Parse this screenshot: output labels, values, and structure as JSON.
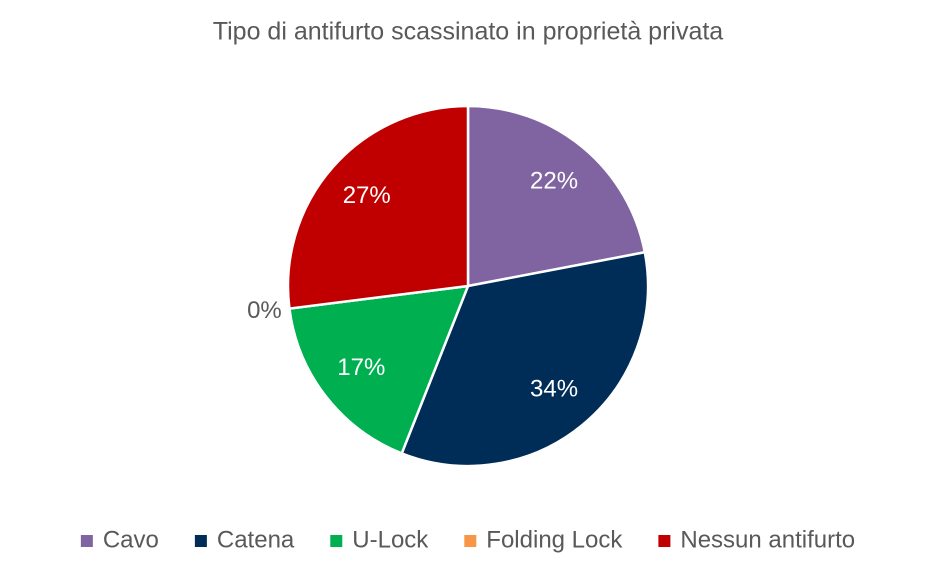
{
  "chart_data": {
    "type": "pie",
    "title": "Tipo di antifurto scassinato in proprietà privata",
    "categories": [
      "Cavo",
      "Catena",
      "U-Lock",
      "Folding Lock",
      "Nessun antifurto"
    ],
    "values": [
      22,
      34,
      17,
      0,
      27
    ],
    "value_labels": [
      "22%",
      "34%",
      "17%",
      "0%",
      "27%"
    ],
    "colors": [
      "#8064a2",
      "#002d57",
      "#00b050",
      "#f79646",
      "#c00000"
    ],
    "legend": "bottom"
  }
}
